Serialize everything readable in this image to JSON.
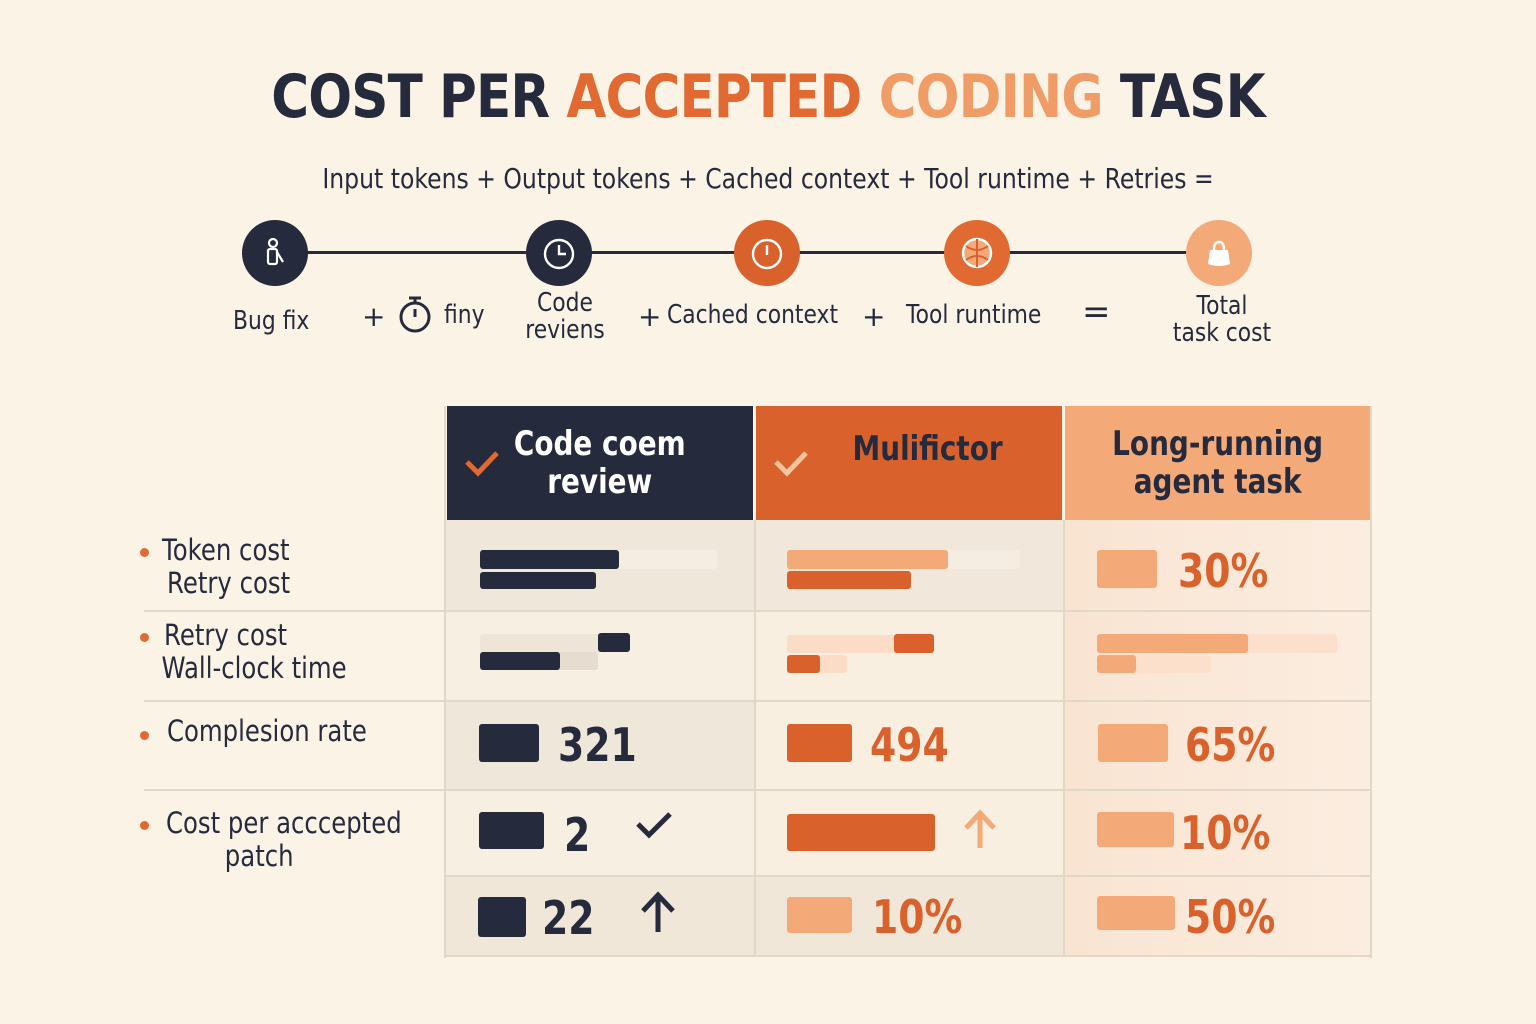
{
  "title": {
    "part1": "COST PER",
    "part2": "ACCEPTED",
    "part3": "CODING",
    "part4": "TASK"
  },
  "formula": "Input tokens + Output tokens + Cached context + Tool runtime + Retries =",
  "flow": {
    "labels": {
      "bug_fix": "Bug fix",
      "plus1": "+",
      "tiny": "finy",
      "code_reviews_line1": "Code",
      "code_reviews_line2": "reviens",
      "plus2": "+",
      "cached_context": "Cached context",
      "plus3": "+",
      "tool_runtime": "Tool runtime",
      "equals": "=",
      "total_line1": "Total",
      "total_line2": "task cost"
    },
    "icons": [
      "bug-fix-icon",
      "clock-icon",
      "timer-icon",
      "ball-icon",
      "bag-icon",
      "stopwatch-icon"
    ]
  },
  "columns": [
    {
      "label_line1": "Code coem",
      "label_line2": "review",
      "check": true,
      "bg": "#262a3d",
      "fg": "#ffffff"
    },
    {
      "label_line1": "Mulifictor",
      "label_line2": "",
      "check": true,
      "bg": "#d9612b",
      "fg": "#262a3d"
    },
    {
      "label_line1": "Long-running",
      "label_line2": "agent task",
      "check": false,
      "bg": "#f3a978",
      "fg": "#262a3d"
    }
  ],
  "rows": [
    {
      "label_line1": "Token cost",
      "label_line2": "Retry cost"
    },
    {
      "label_line1": "Retry cost",
      "label_line2": "Wall-clock time"
    },
    {
      "label_line1": "Complesion rate",
      "label_line2": ""
    },
    {
      "label_line1": "Cost per acccepted",
      "label_line2": "patch"
    }
  ],
  "values": {
    "row1_col3": "30%",
    "row3_col1": "321",
    "row3_col2": "494",
    "row3_col3": "65%",
    "row4_col1": "2",
    "row4_col3": "10%",
    "row5_col1": "22",
    "row5_col2": "10%",
    "row5_col3": "50%"
  },
  "colors": {
    "dark": "#262a3d",
    "orange": "#d9612b",
    "light_orange": "#f3a978",
    "background": "#fbf3e6"
  }
}
